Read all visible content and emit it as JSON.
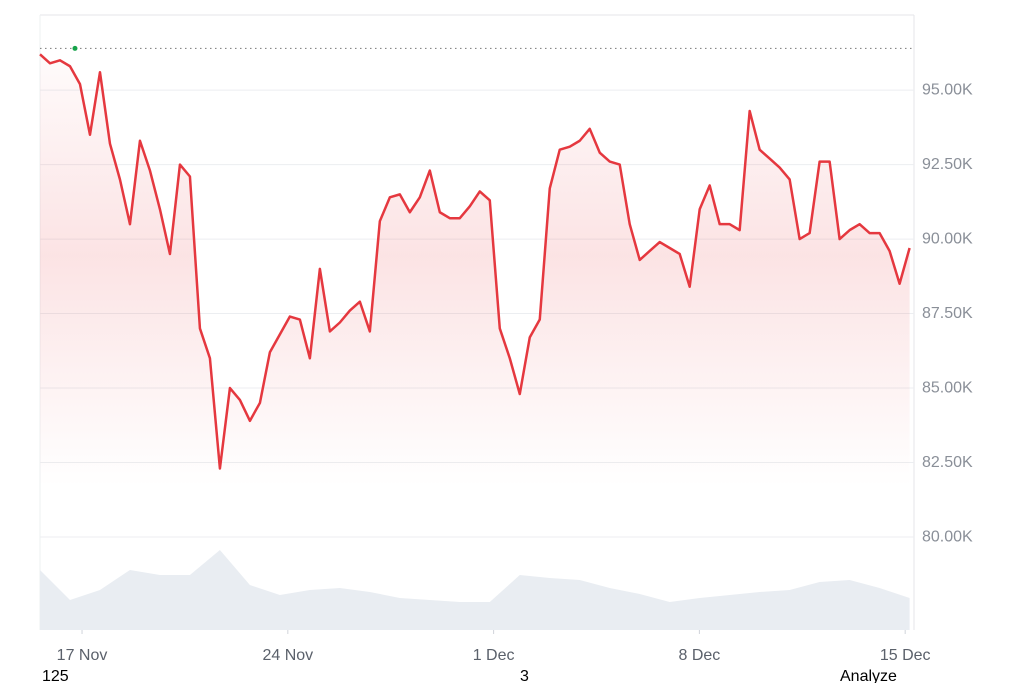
{
  "chart_data": {
    "type": "line",
    "x": [
      15.57,
      15.91,
      16.25,
      16.59,
      16.93,
      17.27,
      17.61,
      17.95,
      18.29,
      18.63,
      18.97,
      19.31,
      19.65,
      19.99,
      20.33,
      20.67,
      21.01,
      21.35,
      21.69,
      22.03,
      22.37,
      22.71,
      23.05,
      23.39,
      23.73,
      24.07,
      24.41,
      24.75,
      25.09,
      25.43,
      25.77,
      26.11,
      26.45,
      26.79,
      27.13,
      27.47,
      27.81,
      28.15,
      28.49,
      28.83,
      29.17,
      29.51,
      29.85,
      30.19,
      30.53,
      30.87,
      31.21,
      31.55,
      31.89,
      32.23,
      32.57,
      32.91,
      33.25,
      33.59,
      33.93,
      34.27,
      34.61,
      34.95,
      35.29,
      35.63,
      35.97,
      36.31,
      36.65,
      36.99,
      37.33,
      37.67,
      38.01,
      38.35,
      38.69,
      39.03,
      39.37,
      39.71,
      40.05,
      40.39,
      40.73,
      41.07,
      41.41,
      41.75,
      42.09,
      42.43,
      42.77,
      43.11,
      43.45,
      43.79,
      44.13,
      44.47,
      44.81,
      45.15
    ],
    "series": [
      {
        "color": "#e5383f",
        "values": [
          96200,
          95900,
          96000,
          95800,
          95200,
          93500,
          95600,
          93200,
          92000,
          90500,
          93300,
          92300,
          91000,
          89500,
          92500,
          92100,
          87000,
          86000,
          82300,
          85000,
          84600,
          83900,
          84500,
          86200,
          86800,
          87400,
          87300,
          86000,
          89000,
          86900,
          87200,
          87600,
          87900,
          86900,
          90600,
          91400,
          91500,
          90900,
          91400,
          92300,
          90900,
          90700,
          90700,
          91100,
          91600,
          91300,
          87000,
          86000,
          84800,
          86700,
          87300,
          91700,
          93000,
          93100,
          93300,
          93700,
          92900,
          92600,
          92500,
          90500,
          89300,
          89600,
          89900,
          89700,
          89500,
          88400,
          91000,
          91800,
          90500,
          90500,
          90300,
          94300,
          93000,
          92700,
          92400,
          92000,
          90000,
          90200,
          92600,
          92600,
          90000,
          90300,
          90500,
          90200,
          90200,
          89600,
          88500,
          89700
        ]
      }
    ],
    "reference_line": 96400,
    "high_point": {
      "x": 16.76,
      "value": 96400,
      "color": "#16a34a"
    },
    "volume": {
      "color": "#e9edf2",
      "x": [
        15.57,
        16.59,
        17.61,
        18.63,
        19.65,
        20.67,
        21.69,
        22.71,
        23.73,
        24.75,
        25.77,
        26.79,
        27.81,
        28.83,
        29.85,
        30.87,
        31.89,
        32.91,
        33.93,
        34.95,
        35.97,
        36.99,
        38.01,
        39.03,
        40.05,
        41.07,
        42.09,
        43.11,
        44.13,
        45.15
      ],
      "values": [
        60,
        30,
        40,
        60,
        55,
        55,
        80,
        45,
        35,
        40,
        42,
        38,
        32,
        30,
        28,
        28,
        55,
        52,
        50,
        42,
        36,
        28,
        32,
        35,
        38,
        40,
        48,
        50,
        42,
        32
      ]
    },
    "xlim": [
      15.57,
      45.3
    ],
    "ylim": [
      76880,
      97520
    ],
    "xticks": [
      {
        "value": 17,
        "label": "17 Nov"
      },
      {
        "value": 24,
        "label": "24 Nov"
      },
      {
        "value": 31,
        "label": "1 Dec"
      },
      {
        "value": 38,
        "label": "8 Dec"
      },
      {
        "value": 45,
        "label": "15 Dec"
      }
    ],
    "yticks": [
      {
        "value": 80000,
        "label": "80.00K"
      },
      {
        "value": 82500,
        "label": "82.50K"
      },
      {
        "value": 85000,
        "label": "85.00K"
      },
      {
        "value": 87500,
        "label": "87.50K"
      },
      {
        "value": 90000,
        "label": "90.00K"
      },
      {
        "value": 92500,
        "label": "92.50K"
      },
      {
        "value": 95000,
        "label": "95.00K"
      }
    ],
    "grid": true
  },
  "footer": [
    "125",
    "3",
    "Analyze"
  ]
}
